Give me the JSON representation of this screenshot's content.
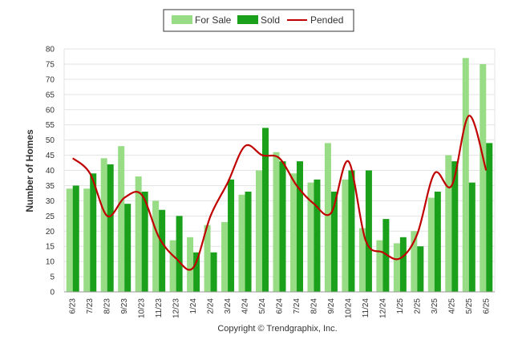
{
  "chart_data": {
    "type": "bar",
    "title": "",
    "xlabel": "",
    "ylabel": "Number of Homes",
    "ylim": [
      0,
      80
    ],
    "yticks": [
      0,
      5,
      10,
      15,
      20,
      25,
      30,
      35,
      40,
      45,
      50,
      55,
      60,
      65,
      70,
      75,
      80
    ],
    "grid": true,
    "legend_position": "top-center",
    "categories": [
      "6/23",
      "7/23",
      "8/23",
      "9/23",
      "10/23",
      "11/23",
      "12/23",
      "1/24",
      "2/24",
      "3/24",
      "4/24",
      "5/24",
      "6/24",
      "7/24",
      "8/24",
      "9/24",
      "10/24",
      "11/24",
      "12/24",
      "1/25",
      "2/25",
      "3/25",
      "4/25",
      "5/25",
      "6/25"
    ],
    "series": [
      {
        "name": "For Sale",
        "kind": "bar",
        "color": "#98dc86",
        "values": [
          34,
          34,
          44,
          48,
          38,
          30,
          17,
          18,
          22,
          23,
          32,
          40,
          46,
          39,
          36,
          49,
          37,
          21,
          17,
          16,
          20,
          31,
          45,
          77,
          75
        ]
      },
      {
        "name": "Sold",
        "kind": "bar",
        "color": "#1aa01a",
        "values": [
          35,
          39,
          42,
          29,
          33,
          27,
          25,
          13,
          13,
          37,
          33,
          54,
          43,
          43,
          37,
          33,
          40,
          40,
          24,
          18,
          15,
          33,
          43,
          36,
          49
        ]
      },
      {
        "name": "Pended",
        "kind": "line",
        "color": "#c00000",
        "values": [
          44,
          39,
          25,
          31,
          32,
          18,
          11,
          8,
          25,
          36,
          48,
          45,
          44,
          35,
          29,
          26,
          43,
          17,
          13,
          11,
          19,
          39,
          35,
          58,
          40
        ]
      }
    ],
    "copyright": "Copyright © Trendgraphix, Inc."
  }
}
